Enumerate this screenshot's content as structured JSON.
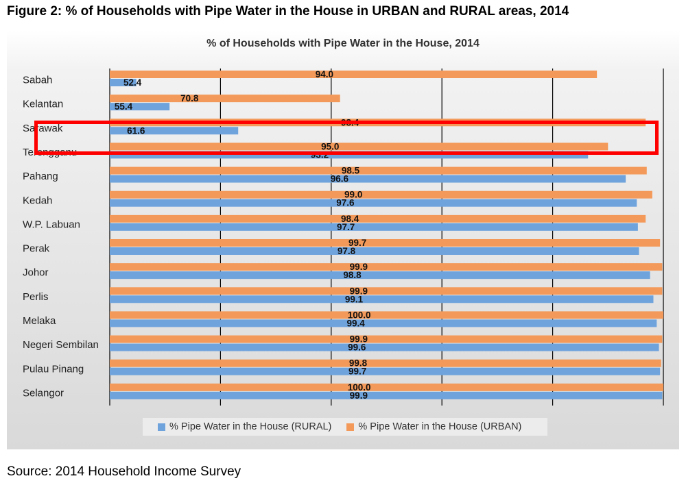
{
  "figure_title": "Figure 2: % of Households with Pipe Water in the House in URBAN and RURAL areas, 2014",
  "source": "Source: 2014 Household Income Survey",
  "colors": {
    "rural": "#6fa3dc",
    "urban": "#f39a5a",
    "highlight": "#ff0000"
  },
  "chart_data": {
    "type": "bar",
    "orientation": "horizontal",
    "title": "% of Households with Pipe Water in the House, 2014",
    "categories": [
      "Sabah",
      "Kelantan",
      "Sarawak",
      "Terengganu",
      "Pahang",
      "Kedah",
      "W.P. Labuan",
      "Perak",
      "Johor",
      "Perlis",
      "Melaka",
      "Negeri Sembilan",
      "Pulau Pinang",
      "Selangor"
    ],
    "series": [
      {
        "name": "% Pipe Water in the House (RURAL)",
        "key": "rural",
        "values": [
          52.4,
          55.4,
          61.6,
          93.2,
          96.6,
          97.6,
          97.7,
          97.8,
          98.8,
          99.1,
          99.4,
          99.6,
          99.7,
          99.9
        ]
      },
      {
        "name": "% Pipe Water in the House (URBAN)",
        "key": "urban",
        "values": [
          94.0,
          70.8,
          98.4,
          95.0,
          98.5,
          99.0,
          98.4,
          99.7,
          99.9,
          99.9,
          100.0,
          99.9,
          99.8,
          100.0
        ]
      }
    ],
    "xlim": [
      50,
      100
    ],
    "grid": true,
    "legend_position": "bottom",
    "highlighted_category": "Sarawak"
  }
}
